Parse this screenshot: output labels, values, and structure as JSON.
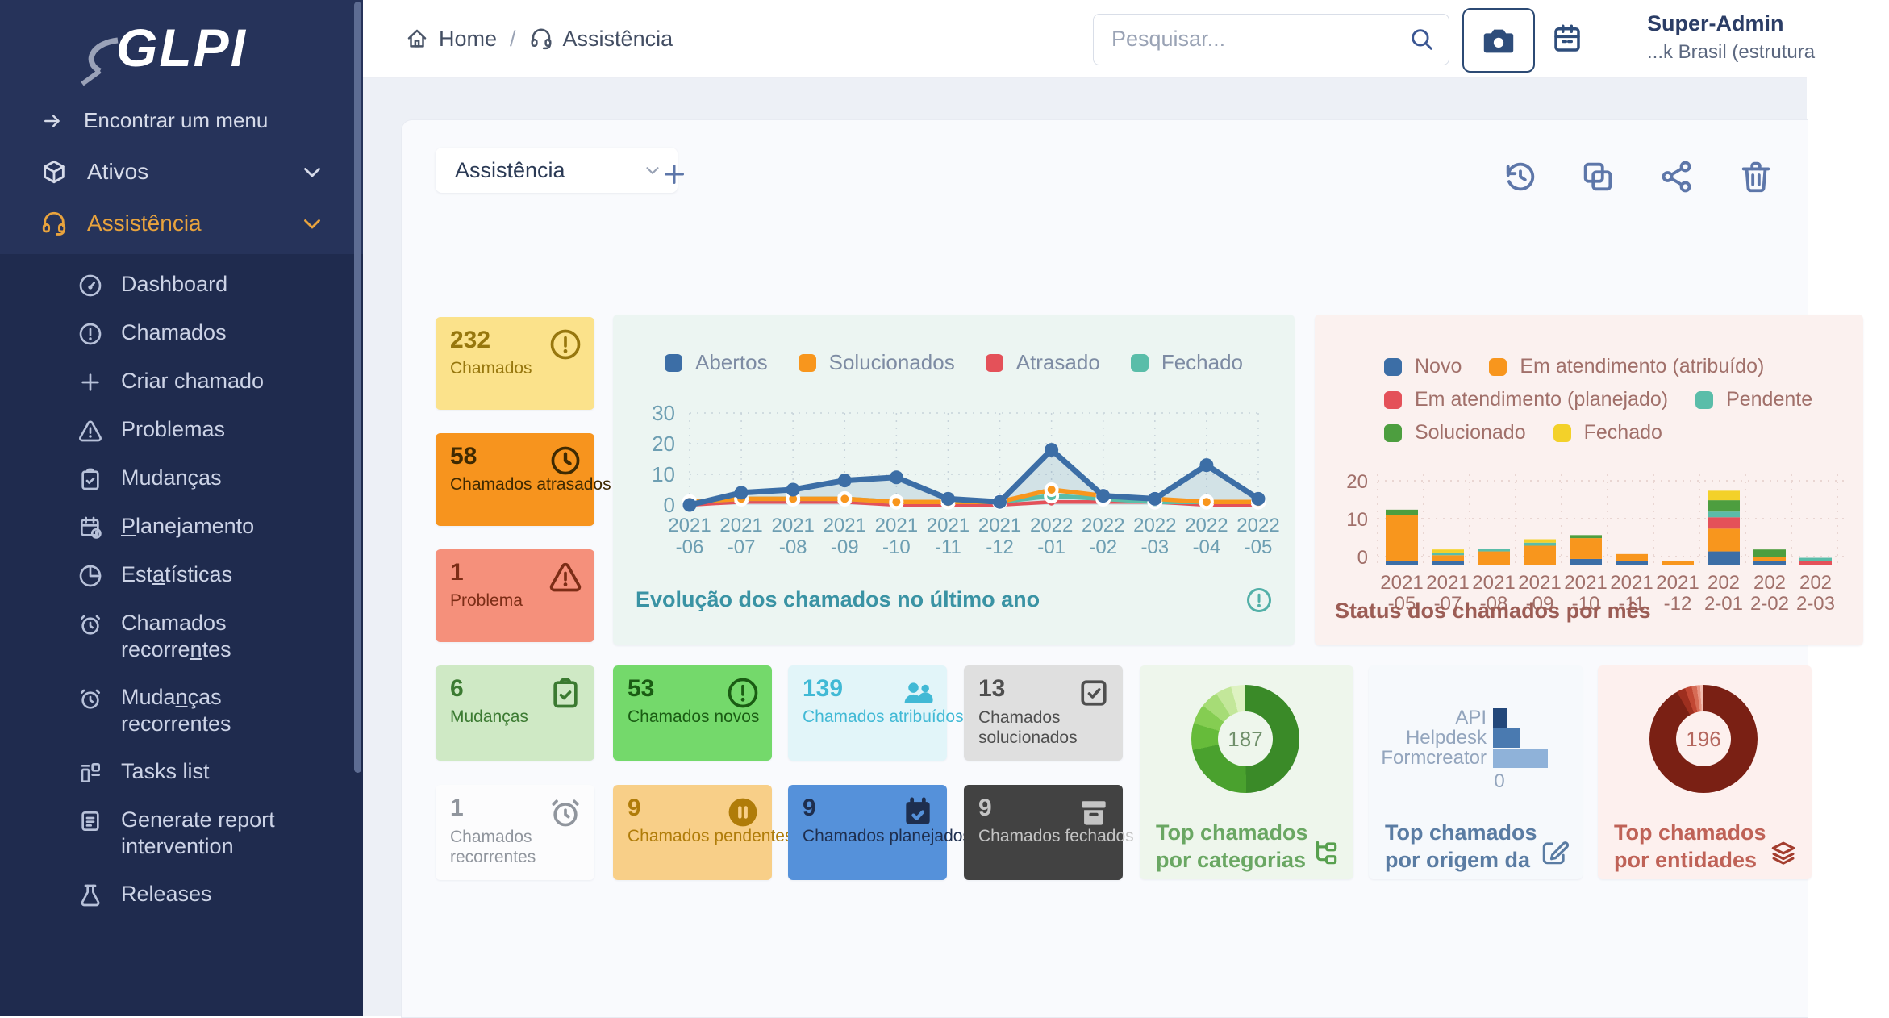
{
  "palette": {
    "sidebar_bg": "#26335a",
    "sidebar_sub_bg": "#1f2b4e",
    "sidebar_active": "#e8a33d",
    "accent_blue": "#3c6ea6",
    "panel_bg": "#f9fafd",
    "main_bg": "#edf0f6",
    "toolbar_icon": "#5d76a9"
  },
  "sidebar": {
    "logo_text": "GLPI",
    "find_menu": {
      "label": "Encontrar um menu",
      "icon": "arrow-right-icon"
    },
    "sections": [
      {
        "label": "Ativos",
        "icon": "package-icon",
        "active": false
      },
      {
        "label": "Assistência",
        "icon": "headset-icon",
        "active": true
      }
    ],
    "submenu": [
      {
        "label": "Dashboard",
        "icon": "gauge-icon"
      },
      {
        "label": "Chamados",
        "icon": "alert-circle-icon"
      },
      {
        "label": "Criar chamado",
        "icon": "plus-icon"
      },
      {
        "label": "Problemas",
        "icon": "alert-triangle-icon"
      },
      {
        "label": "Mudanças",
        "icon": "clipboard-check-icon"
      },
      {
        "label": "Planejamento",
        "icon": "calendar-clock-icon",
        "underline": "P"
      },
      {
        "label": "Estatísticas",
        "icon": "pie-chart-icon",
        "underline": "a"
      },
      {
        "label": "Chamados recorrentes",
        "icon": "alarm-icon",
        "underline": "n"
      },
      {
        "label": "Mudanças recorrentes",
        "icon": "alarm-icon",
        "underline": "n"
      },
      {
        "label": "Tasks list",
        "icon": "tasks-icon"
      },
      {
        "label": "Generate report intervention",
        "icon": "report-icon"
      },
      {
        "label": "Releases",
        "icon": "flask-icon"
      }
    ]
  },
  "header": {
    "breadcrumb": [
      {
        "label": "Home",
        "icon": "home-icon"
      },
      {
        "label": "Assistência",
        "icon": "headset-icon"
      }
    ],
    "search_placeholder": "Pesquisar...",
    "user": {
      "name": "Super-Admin",
      "entity": "...k Brasil (estrutura"
    }
  },
  "toolbar": {
    "dashboard_select": "Assistência",
    "actions": [
      "history",
      "duplicate",
      "share",
      "delete"
    ]
  },
  "stat_cards": [
    {
      "value": "232",
      "label": "Chamados",
      "icon": "alert-circle-icon",
      "bg": "#fbe28b",
      "fg": "#97770e"
    },
    {
      "value": "58",
      "label": "Chamados atrasados",
      "icon": "clock-icon",
      "bg": "#f7941e",
      "fg": "#3f2a02"
    },
    {
      "value": "1",
      "label": "Problema",
      "icon": "alert-triangle-icon",
      "bg": "#f5907b",
      "fg": "#7c2d16"
    },
    {
      "value": "6",
      "label": "Mudanças",
      "icon": "clipboard-check-icon",
      "bg": "#cfe9c5",
      "fg": "#3b7a31"
    },
    {
      "value": "53",
      "label": "Chamados novos",
      "icon": "alert-circle-icon",
      "bg": "#74d96b",
      "fg": "#1a5c13"
    },
    {
      "value": "139",
      "label": "Chamados atribuídos",
      "icon": "users-icon",
      "bg": "#e2f5f9",
      "fg": "#41b9d5"
    },
    {
      "value": "13",
      "label": "Chamados solucionados",
      "icon": "checkbox-icon",
      "bg": "#dfdfdf",
      "fg": "#4f4f4f",
      "wrap": true
    },
    {
      "value": "1",
      "label": "Chamados recorrentes",
      "icon": "alarm-icon",
      "bg": "#fcfcfd",
      "fg": "#90959d",
      "wrap": true
    },
    {
      "value": "9",
      "label": "Chamados pendentes",
      "icon": "pause-circle-icon",
      "bg": "#f8cf88",
      "fg": "#b07c09"
    },
    {
      "value": "9",
      "label": "Chamados planejados",
      "icon": "calendar-check-icon",
      "bg": "#5591da",
      "fg": "#1e2e4e"
    },
    {
      "value": "9",
      "label": "Chamados fechados",
      "icon": "archive-icon",
      "bg": "#424242",
      "fg": "#c4c4c4"
    }
  ],
  "chart_data": [
    {
      "type": "line",
      "title": "Evolução dos chamados no último ano",
      "x": [
        "2021-06",
        "2021-07",
        "2021-08",
        "2021-09",
        "2021-10",
        "2021-11",
        "2021-12",
        "2022-01",
        "2022-02",
        "2022-03",
        "2022-04",
        "2022-05"
      ],
      "ylim": [
        0,
        30
      ],
      "yticks": [
        0,
        10,
        20,
        30
      ],
      "grid": true,
      "legend_position": "top",
      "series": [
        {
          "name": "Abertos",
          "color": "#3c6ea6",
          "values": [
            0,
            4,
            5,
            8,
            9,
            2,
            1,
            18,
            3,
            2,
            13,
            2
          ]
        },
        {
          "name": "Solucionados",
          "color": "#f8961d",
          "values": [
            1,
            2,
            2,
            2,
            1,
            1,
            1,
            5,
            3,
            2,
            1,
            1
          ]
        },
        {
          "name": "Atrasado",
          "color": "#e45159",
          "values": [
            0,
            1,
            1,
            1,
            0,
            0,
            0,
            1,
            1,
            1,
            0,
            0
          ]
        },
        {
          "name": "Fechado",
          "color": "#5abda9",
          "values": [
            1,
            2,
            2,
            2,
            1,
            1,
            1,
            3,
            2,
            1,
            1,
            1
          ]
        }
      ]
    },
    {
      "type": "bar",
      "stacked": true,
      "title": "Status dos chamados por mês",
      "categories": [
        "2021-05",
        "2021-07",
        "2021-08",
        "2021-09",
        "2021-10",
        "2021-11",
        "2021-12",
        "2022-01",
        "2022-02",
        "2022-03"
      ],
      "ylim": [
        0,
        20
      ],
      "yticks": [
        0,
        10,
        20
      ],
      "grid": true,
      "series": [
        {
          "name": "Novo",
          "color": "#3c6ea6",
          "values": [
            1,
            1,
            0,
            0,
            1.5,
            1,
            0,
            3.5,
            1,
            0
          ]
        },
        {
          "name": "Em atendimento (atribuído)",
          "color": "#f8961d",
          "values": [
            12,
            1.5,
            3.5,
            5,
            5.5,
            1.8,
            1,
            6,
            1,
            0
          ]
        },
        {
          "name": "Em atendimento (planejado)",
          "color": "#e45159",
          "values": [
            0,
            0,
            0,
            0,
            0,
            0,
            0,
            3,
            0,
            1
          ]
        },
        {
          "name": "Pendente",
          "color": "#5abda9",
          "values": [
            0,
            0.7,
            0.7,
            0.8,
            0,
            0,
            0,
            1.5,
            0,
            0.8
          ]
        },
        {
          "name": "Solucionado",
          "color": "#4d9e3f",
          "values": [
            1.5,
            0,
            0,
            0,
            0.8,
            0,
            0,
            3,
            2,
            0
          ]
        },
        {
          "name": "Fechado",
          "color": "#f3d129",
          "values": [
            0,
            0.8,
            0,
            0.9,
            0,
            0,
            0,
            2.5,
            0,
            0
          ]
        }
      ]
    },
    {
      "type": "pie",
      "subtype": "donut",
      "title_lines": [
        "Top chamados",
        "por categorias"
      ],
      "center_label": "187",
      "slices": [
        {
          "value": 93,
          "color": "#3a8a28"
        },
        {
          "value": 41,
          "color": "#4aa12e"
        },
        {
          "value": 15,
          "color": "#66bb3a"
        },
        {
          "value": 11,
          "color": "#85cd52"
        },
        {
          "value": 10,
          "color": "#a6dc76"
        },
        {
          "value": 9,
          "color": "#c3e79a"
        },
        {
          "value": 8,
          "color": "#def2c2"
        }
      ]
    },
    {
      "type": "bar",
      "orientation": "horizontal",
      "title_lines": [
        "Top chamados",
        "por origem da"
      ],
      "categories": [
        "API",
        "Helpdesk",
        "Formcreator"
      ],
      "values": [
        2,
        4,
        8
      ],
      "colors": [
        "#24487a",
        "#4a7ab0",
        "#8fb2d9"
      ],
      "xticks": [
        "0"
      ]
    },
    {
      "type": "pie",
      "subtype": "donut",
      "title_lines": [
        "Top chamados",
        "por entidades"
      ],
      "center_label": "196",
      "slices": [
        {
          "value": 180,
          "color": "#7a2014"
        },
        {
          "value": 5,
          "color": "#9e2f1f"
        },
        {
          "value": 4,
          "color": "#c14733"
        },
        {
          "value": 3,
          "color": "#d66b55"
        },
        {
          "value": 2,
          "color": "#e89583"
        },
        {
          "value": 2,
          "color": "#f3beb2"
        }
      ]
    }
  ]
}
